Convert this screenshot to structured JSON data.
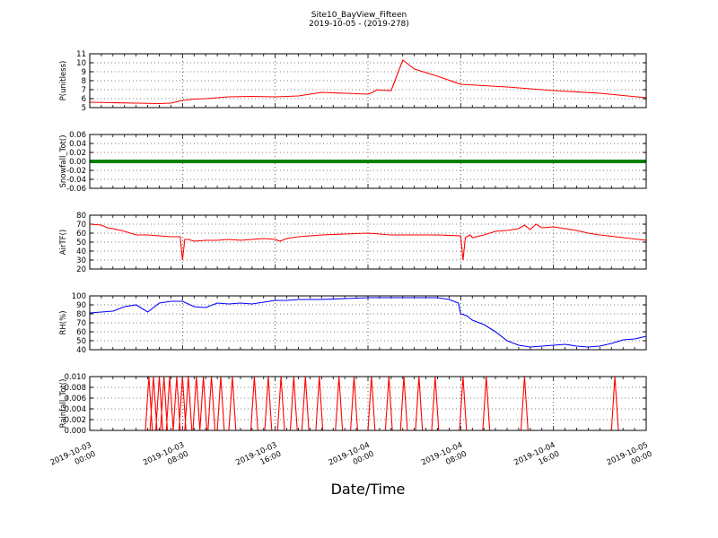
{
  "figure": {
    "title_line1": "Site10_BayView_Fifteen",
    "title_line2": "2019-10-05 - (2019-278)",
    "xlabel": "Date/Time",
    "x_ticks": [
      {
        "x": 0,
        "line1": "2019-10-03",
        "line2": "00:00"
      },
      {
        "x": 8,
        "line1": "2019-10-03",
        "line2": "08:00"
      },
      {
        "x": 16,
        "line1": "2019-10-03",
        "line2": "16:00"
      },
      {
        "x": 24,
        "line1": "2019-10-04",
        "line2": "00:00"
      },
      {
        "x": 32,
        "line1": "2019-10-04",
        "line2": "08:00"
      },
      {
        "x": 40,
        "line1": "2019-10-04",
        "line2": "16:00"
      },
      {
        "x": 48,
        "line1": "2019-10-05",
        "line2": "00:00"
      }
    ]
  },
  "chart_data": [
    {
      "type": "line",
      "ylabel": "P(unitless)",
      "ylim": [
        5,
        11
      ],
      "yticks": [
        "5",
        "6",
        "7",
        "8",
        "9",
        "10",
        "11"
      ],
      "grid": true,
      "series": [
        {
          "color": "#ff0000",
          "x": [
            0,
            2,
            4,
            6,
            7,
            8,
            9,
            10,
            12,
            14,
            16,
            18,
            20,
            22,
            24,
            24.4,
            24.8,
            25,
            26,
            27,
            28,
            30,
            32,
            36,
            40,
            44,
            48
          ],
          "y": [
            5.6,
            5.55,
            5.5,
            5.45,
            5.5,
            5.8,
            5.95,
            6.0,
            6.2,
            6.25,
            6.2,
            6.3,
            6.7,
            6.6,
            6.5,
            6.7,
            7.0,
            6.95,
            6.9,
            10.3,
            9.3,
            8.5,
            7.6,
            7.3,
            6.9,
            6.6,
            6.1
          ]
        }
      ]
    },
    {
      "type": "line",
      "ylabel": "Snowfall_Tot()",
      "ylim": [
        -0.06,
        0.06
      ],
      "yticks": [
        "-0.06",
        "-0.04",
        "-0.02",
        "0.00",
        "0.02",
        "0.04",
        "0.06"
      ],
      "grid": true,
      "series": [
        {
          "color": "#008000",
          "x": [
            0,
            48
          ],
          "y": [
            0,
            0
          ]
        }
      ]
    },
    {
      "type": "line",
      "ylabel": "AirTF()",
      "ylim": [
        20,
        80
      ],
      "yticks": [
        "20",
        "30",
        "40",
        "50",
        "60",
        "70",
        "80"
      ],
      "grid": true,
      "series": [
        {
          "color": "#ff0000",
          "x": [
            0,
            1,
            1.5,
            2,
            3,
            4,
            5,
            6,
            7,
            7.8,
            8,
            8.2,
            8.5,
            9,
            10,
            11,
            12,
            13,
            14,
            15,
            16,
            16.4,
            17,
            18,
            19,
            20,
            22,
            24,
            26,
            28,
            30,
            32,
            32.2,
            32.4,
            32.8,
            33,
            34,
            35,
            36,
            37,
            37.5,
            38,
            38.5,
            39,
            40,
            41,
            42,
            43,
            44,
            46,
            48
          ],
          "y": [
            70,
            69,
            66,
            65,
            62,
            58,
            58,
            57,
            56,
            56,
            30,
            53,
            53,
            51,
            52,
            52,
            53,
            52,
            53,
            54,
            53,
            51,
            54,
            56,
            57,
            58,
            59,
            60,
            58,
            58,
            58,
            57,
            30,
            55,
            58,
            55,
            58,
            62,
            63,
            65,
            69,
            64,
            70,
            66,
            67,
            65,
            63,
            60,
            58,
            55,
            52
          ]
        }
      ]
    },
    {
      "type": "line",
      "ylabel": "RH(%)",
      "ylim": [
        40,
        100
      ],
      "yticks": [
        "40",
        "50",
        "60",
        "70",
        "80",
        "90",
        "100"
      ],
      "grid": true,
      "series": [
        {
          "color": "#0000ff",
          "x": [
            0,
            1,
            2,
            3,
            4,
            5,
            6,
            7,
            8,
            9,
            10,
            11,
            12,
            13,
            14,
            15,
            16,
            17,
            18,
            19,
            20,
            22,
            24,
            26,
            28,
            30,
            31,
            31.8,
            32,
            32.5,
            33,
            34,
            35,
            36,
            37,
            38,
            39,
            40,
            41,
            42,
            43,
            44,
            45,
            46,
            47,
            48
          ],
          "y": [
            81,
            82,
            83,
            88,
            90,
            82,
            92,
            94,
            94,
            88,
            87,
            92,
            91,
            92,
            91,
            93,
            95,
            95,
            96,
            96,
            96,
            97,
            98,
            98,
            98,
            98,
            96,
            92,
            80,
            78,
            73,
            68,
            60,
            50,
            45,
            43,
            44,
            45,
            46,
            44,
            43,
            44,
            47,
            51,
            52,
            55
          ]
        }
      ]
    },
    {
      "type": "line",
      "ylabel": "Rainfall_Tot()",
      "ylim": [
        0,
        0.01
      ],
      "yticks": [
        "0.000",
        "0.002",
        "0.004",
        "0.006",
        "0.008",
        "0.010"
      ],
      "grid": true,
      "series": [
        {
          "color": "#ff0000",
          "spike_height": 0.01,
          "spikes": [
            5.1,
            5.5,
            6.0,
            6.4,
            6.9,
            7.5,
            8.0,
            8.5,
            9.2,
            9.8,
            10.5,
            11.3,
            12.3,
            14.2,
            15.4,
            16.5,
            17.6,
            18.6,
            19.8,
            21.5,
            22.8,
            24.3,
            25.8,
            27.1,
            28.4,
            29.8,
            32.2,
            34.2,
            37.5,
            45.3
          ]
        }
      ]
    }
  ]
}
